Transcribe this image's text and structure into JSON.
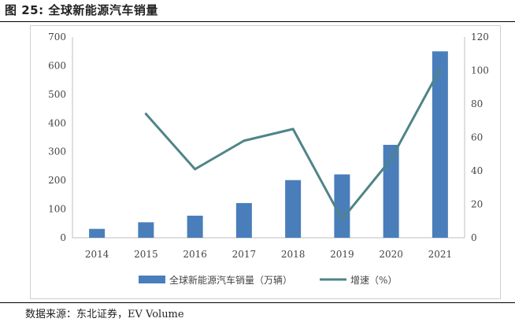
{
  "figure": {
    "title": "图 25: 全球新能源汽车销量",
    "source": "数据来源：东北证券，EV Volume"
  },
  "colors": {
    "bar": "#4a7ebb",
    "line": "#4f8488",
    "axis_text": "#444444",
    "axis_line": "#bfbfbf"
  },
  "chart_data": {
    "type": "bar",
    "categories": [
      "2014",
      "2015",
      "2016",
      "2017",
      "2018",
      "2019",
      "2020",
      "2021"
    ],
    "series": [
      {
        "name": "全球新能源汽车销量（万辆）",
        "type": "bar",
        "axis": "left",
        "values": [
          31,
          54,
          77,
          121,
          201,
          221,
          324,
          650
        ]
      },
      {
        "name": "增速（%）",
        "type": "line",
        "axis": "right",
        "values": [
          null,
          74,
          41,
          58,
          65,
          11,
          47,
          101
        ]
      }
    ],
    "y_left": {
      "ylim": [
        0,
        700
      ],
      "ticks": [
        "0",
        "100",
        "200",
        "300",
        "400",
        "500",
        "600",
        "700"
      ]
    },
    "y_right": {
      "ylim": [
        0,
        120
      ],
      "ticks": [
        "0",
        "20",
        "40",
        "60",
        "80",
        "100",
        "120"
      ]
    },
    "legend_position": "bottom-center",
    "grid": false
  }
}
